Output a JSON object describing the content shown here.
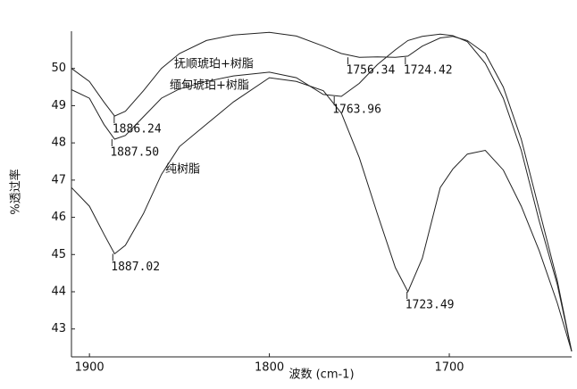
{
  "chart_data": {
    "type": "line",
    "x_label": "波数 (cm-1)",
    "y_label": "%透过率",
    "x": [
      1910,
      1900,
      1892,
      1886,
      1880,
      1870,
      1860,
      1850,
      1835,
      1820,
      1800,
      1785,
      1770,
      1760,
      1750,
      1740,
      1730,
      1723,
      1715,
      1705,
      1698,
      1690,
      1680,
      1670,
      1660,
      1650,
      1640,
      1632
    ],
    "series": [
      {
        "name": "抚顺琥珀+树脂",
        "color": "#222222",
        "values": [
          50.0,
          49.65,
          49.1,
          48.72,
          48.85,
          49.4,
          50.0,
          50.4,
          50.75,
          50.9,
          50.97,
          50.87,
          50.6,
          50.4,
          50.3,
          50.31,
          50.3,
          50.33,
          50.6,
          50.82,
          50.86,
          50.75,
          50.4,
          49.5,
          48.1,
          46.2,
          44.3,
          42.4
        ]
      },
      {
        "name": "缅甸琥珀+树脂",
        "color": "#222222",
        "values": [
          49.43,
          49.2,
          48.5,
          48.1,
          48.2,
          48.7,
          49.2,
          49.45,
          49.65,
          49.8,
          49.9,
          49.75,
          49.3,
          49.25,
          49.6,
          50.1,
          50.5,
          50.75,
          50.86,
          50.92,
          50.88,
          50.72,
          50.14,
          49.2,
          47.8,
          45.9,
          44.2,
          42.4
        ]
      },
      {
        "name": "纯树脂",
        "color": "#222222",
        "values": [
          46.8,
          46.3,
          45.55,
          45.02,
          45.25,
          46.1,
          47.15,
          47.9,
          48.5,
          49.1,
          49.75,
          49.65,
          49.4,
          48.8,
          47.6,
          46.1,
          44.65,
          44.0,
          44.9,
          46.8,
          47.3,
          47.7,
          47.8,
          47.27,
          46.3,
          45.1,
          43.7,
          42.4
        ]
      }
    ],
    "annotations": [
      {
        "value": 1886.24,
        "label": "1886.24",
        "y": 48.72
      },
      {
        "value": 1887.5,
        "label": "1887.50",
        "y": 48.1
      },
      {
        "value": 1887.02,
        "label": "1887.02",
        "y": 45.02
      },
      {
        "value": 1763.96,
        "label": "1763.96",
        "y": 49.25
      },
      {
        "value": 1756.34,
        "label": "1756.34",
        "y": 50.3
      },
      {
        "value": 1724.42,
        "label": "1724.42",
        "y": 50.3
      },
      {
        "value": 1723.49,
        "label": "1723.49",
        "y": 44.0
      }
    ],
    "xlim": [
      1910,
      1632
    ],
    "ylim": [
      42.25,
      51
    ],
    "xticks": [
      1900,
      1800,
      1700
    ],
    "yticks": [
      43,
      44,
      45,
      46,
      47,
      48,
      49,
      50
    ]
  }
}
